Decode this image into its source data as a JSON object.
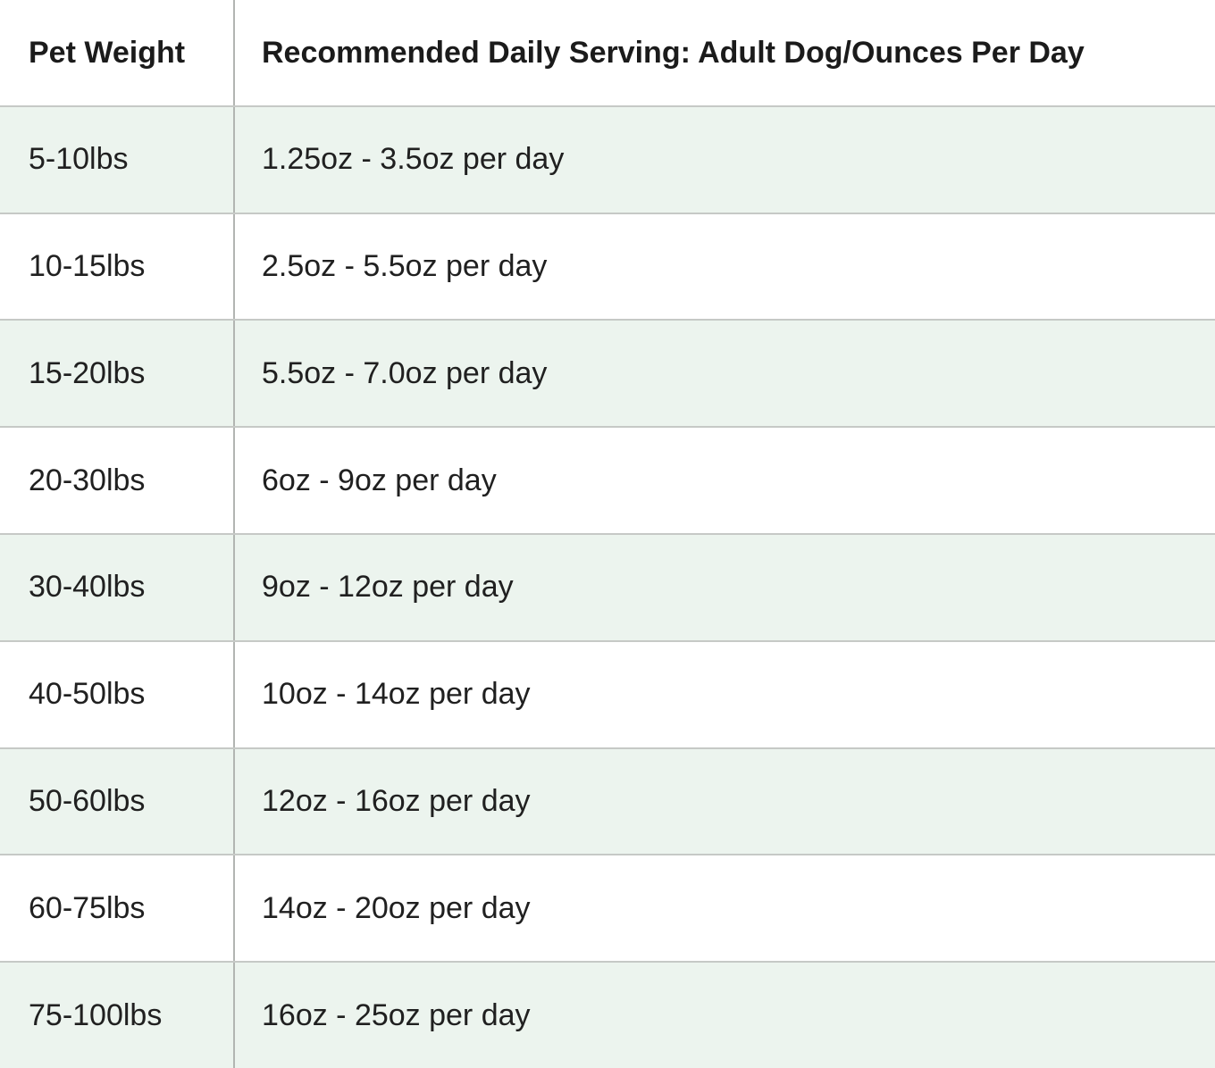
{
  "table": {
    "columns": [
      {
        "label": "Pet Weight"
      },
      {
        "label": "Recommended Daily Serving: Adult Dog/Ounces Per Day"
      }
    ],
    "rows": [
      {
        "weight": "5-10lbs",
        "serving": "1.25oz - 3.5oz per day"
      },
      {
        "weight": "10-15lbs",
        "serving": "2.5oz - 5.5oz per day"
      },
      {
        "weight": "15-20lbs",
        "serving": "5.5oz - 7.0oz per day"
      },
      {
        "weight": "20-30lbs",
        "serving": "6oz - 9oz per day"
      },
      {
        "weight": "30-40lbs",
        "serving": "9oz - 12oz per day"
      },
      {
        "weight": "40-50lbs",
        "serving": "10oz - 14oz per day"
      },
      {
        "weight": "50-60lbs",
        "serving": "12oz - 16oz per day"
      },
      {
        "weight": "60-75lbs",
        "serving": "14oz - 20oz per day"
      },
      {
        "weight": "75-100lbs",
        "serving": "16oz - 25oz per day"
      }
    ],
    "colors": {
      "row_alt_background": "#ecf4ee",
      "row_background": "#ffffff",
      "vertical_divider": "#b2b5b2",
      "horizontal_divider": "#c6c9c6",
      "header_text": "#1b1b1b",
      "body_text": "#202020"
    }
  }
}
